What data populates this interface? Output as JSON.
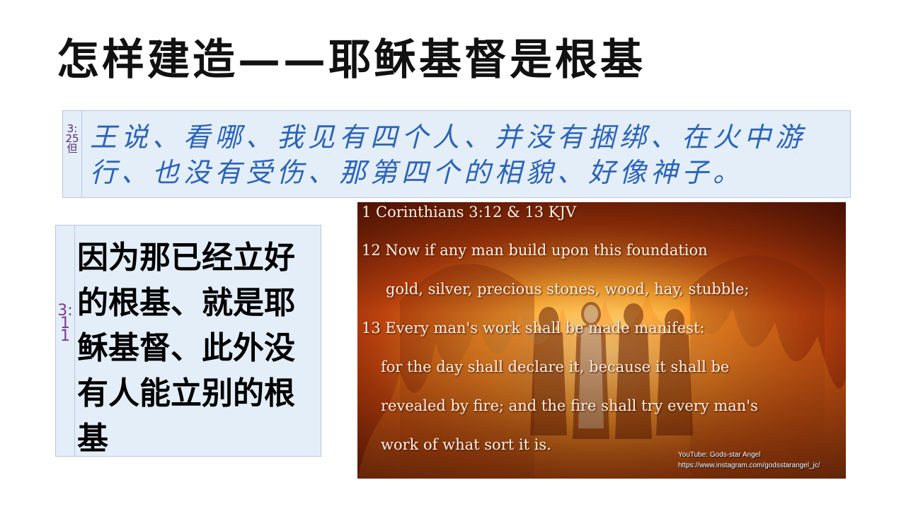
{
  "title": "怎样建造——耶稣基督是根基",
  "verse_top": {
    "reference": "3:25但",
    "text": "王说、看哪、我见有四个人、并没有捆绑、在火中游行、也没有受伤、那第四个的相貌、好像神子。"
  },
  "verse_left": {
    "reference": "3:11",
    "text": "因为那已经立好的根基、就是耶稣基督、此外没有人能立别的根基"
  },
  "image": {
    "heading": "1 Corinthians 3:12 & 13 KJV",
    "lines": [
      "12 Now if any man build upon this foundation",
      "gold, silver, precious stones, wood, hay, stubble;",
      "13 Every man's work shall be made manifest:",
      "for the day shall declare it, because it shall be",
      "revealed by fire; and the fire shall try every man's",
      "work of what sort it is."
    ],
    "credit_youtube": "YouTube: Gods-star Angel",
    "credit_instagram": "https://www.instagram.com/godsstarangel_jc/"
  }
}
